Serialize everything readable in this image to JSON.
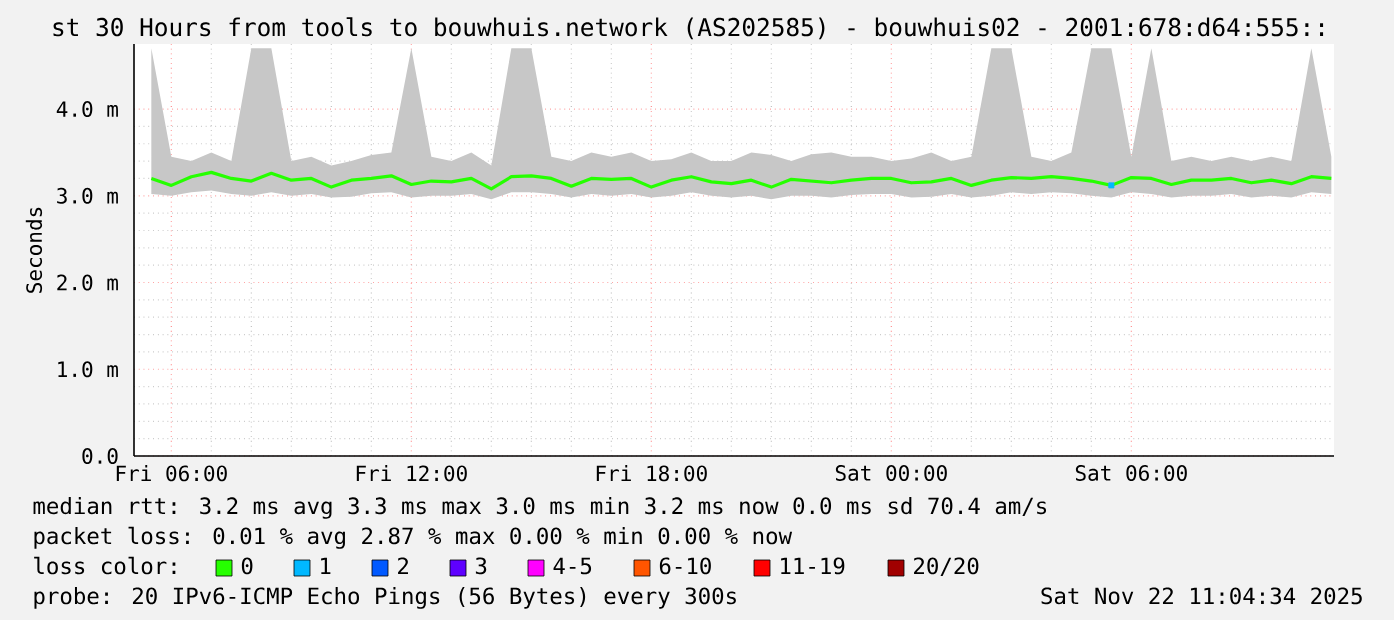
{
  "chart_data": {
    "type": "line",
    "title": "st 30 Hours from tools to bouwhuis.network (AS202585) - bouwhuis02 - 2001:678:d64:555::",
    "ylabel": "Seconds",
    "legend_title": "loss color:",
    "legend": "bottom",
    "grid": true,
    "xlim": [
      "2025-11-21T05:04",
      "2025-11-22T11:04"
    ],
    "xticks": [
      {
        "value": "2025-11-21T06:00",
        "label": "Fri 06:00"
      },
      {
        "value": "2025-11-21T12:00",
        "label": "Fri 12:00"
      },
      {
        "value": "2025-11-21T18:00",
        "label": "Fri 18:00"
      },
      {
        "value": "2025-11-22T00:00",
        "label": "Sat 00:00"
      },
      {
        "value": "2025-11-22T06:00",
        "label": "Sat 06:00"
      }
    ],
    "ylim": [
      0,
      4.75
    ],
    "yticks": [
      {
        "value": 0,
        "label": "0.0"
      },
      {
        "value": 1,
        "label": "1.0 m"
      },
      {
        "value": 2,
        "label": "2.0 m"
      },
      {
        "value": 3,
        "label": "3.0 m"
      },
      {
        "value": 4,
        "label": "4.0 m"
      }
    ],
    "x": [
      "2025-11-21T05:30",
      "2025-11-21T06:00",
      "2025-11-21T06:30",
      "2025-11-21T07:00",
      "2025-11-21T07:30",
      "2025-11-21T08:00",
      "2025-11-21T08:30",
      "2025-11-21T09:00",
      "2025-11-21T09:30",
      "2025-11-21T10:00",
      "2025-11-21T10:30",
      "2025-11-21T11:00",
      "2025-11-21T11:30",
      "2025-11-21T12:00",
      "2025-11-21T12:30",
      "2025-11-21T13:00",
      "2025-11-21T13:30",
      "2025-11-21T14:00",
      "2025-11-21T14:30",
      "2025-11-21T15:00",
      "2025-11-21T15:30",
      "2025-11-21T16:00",
      "2025-11-21T16:30",
      "2025-11-21T17:00",
      "2025-11-21T17:30",
      "2025-11-21T18:00",
      "2025-11-21T18:30",
      "2025-11-21T19:00",
      "2025-11-21T19:30",
      "2025-11-21T20:00",
      "2025-11-21T20:30",
      "2025-11-21T21:00",
      "2025-11-21T21:30",
      "2025-11-21T22:00",
      "2025-11-21T22:30",
      "2025-11-21T23:00",
      "2025-11-21T23:30",
      "2025-11-22T00:00",
      "2025-11-22T00:30",
      "2025-11-22T01:00",
      "2025-11-22T01:30",
      "2025-11-22T02:00",
      "2025-11-22T02:30",
      "2025-11-22T03:00",
      "2025-11-22T03:30",
      "2025-11-22T04:00",
      "2025-11-22T04:30",
      "2025-11-22T05:00",
      "2025-11-22T05:30",
      "2025-11-22T06:00",
      "2025-11-22T06:30",
      "2025-11-22T07:00",
      "2025-11-22T07:30",
      "2025-11-22T08:00",
      "2025-11-22T08:30",
      "2025-11-22T09:00",
      "2025-11-22T09:30",
      "2025-11-22T10:00",
      "2025-11-22T10:30",
      "2025-11-22T11:00"
    ],
    "series": [
      {
        "name": "0",
        "color": "#26ff00",
        "values": [
          3.2,
          3.12,
          3.22,
          3.27,
          3.2,
          3.17,
          3.26,
          3.18,
          3.2,
          3.1,
          3.18,
          3.2,
          3.23,
          3.13,
          3.17,
          3.16,
          3.2,
          3.08,
          3.22,
          3.23,
          3.2,
          3.11,
          3.2,
          3.19,
          3.2,
          3.1,
          3.18,
          3.22,
          3.16,
          3.14,
          3.18,
          3.1,
          3.19,
          3.17,
          3.15,
          3.18,
          3.2,
          3.2,
          3.15,
          3.16,
          3.2,
          3.12,
          3.18,
          3.21,
          3.2,
          3.22,
          3.2,
          3.17,
          3.12,
          3.21,
          3.2,
          3.13,
          3.18,
          3.18,
          3.2,
          3.15,
          3.18,
          3.14,
          3.22,
          3.2
        ],
        "lower": [
          3.02,
          3.0,
          3.04,
          3.06,
          3.02,
          3.0,
          3.04,
          3.0,
          3.02,
          2.98,
          2.99,
          3.03,
          3.04,
          2.98,
          3.0,
          3.0,
          3.02,
          2.96,
          3.04,
          3.04,
          3.02,
          2.98,
          3.02,
          3.0,
          3.02,
          2.98,
          3.0,
          3.04,
          3.0,
          2.98,
          3.0,
          2.96,
          3.0,
          3.0,
          2.98,
          3.01,
          3.02,
          3.02,
          2.98,
          2.99,
          3.02,
          2.98,
          3.0,
          3.04,
          3.02,
          3.04,
          3.03,
          3.0,
          2.98,
          3.04,
          3.02,
          2.98,
          3.0,
          3.0,
          3.02,
          2.98,
          3.0,
          2.98,
          3.04,
          3.02
        ],
        "upper": [
          4.7,
          3.45,
          3.4,
          3.5,
          3.4,
          4.7,
          4.7,
          3.4,
          3.45,
          3.35,
          3.4,
          3.47,
          3.5,
          4.7,
          3.45,
          3.4,
          3.5,
          3.35,
          4.7,
          4.7,
          3.45,
          3.4,
          3.5,
          3.45,
          3.5,
          3.4,
          3.42,
          3.5,
          3.4,
          3.4,
          3.5,
          3.47,
          3.4,
          3.48,
          3.5,
          3.45,
          3.45,
          3.4,
          3.43,
          3.5,
          3.4,
          3.45,
          4.7,
          4.7,
          3.45,
          3.4,
          3.5,
          4.7,
          4.7,
          3.45,
          4.7,
          3.4,
          3.45,
          3.4,
          3.45,
          3.4,
          3.45,
          3.4,
          4.7,
          3.45
        ]
      },
      {
        "name": "1",
        "color": "#00b8ff",
        "marker": "square",
        "values": [
          null,
          null,
          null,
          null,
          null,
          null,
          null,
          null,
          null,
          null,
          null,
          null,
          null,
          null,
          null,
          null,
          null,
          null,
          null,
          null,
          null,
          null,
          null,
          null,
          null,
          null,
          null,
          null,
          null,
          null,
          null,
          null,
          null,
          null,
          null,
          null,
          null,
          null,
          null,
          null,
          null,
          null,
          null,
          null,
          null,
          null,
          null,
          null,
          3.12,
          null,
          null,
          null,
          null,
          null,
          null,
          null,
          null,
          null,
          null,
          null
        ]
      },
      {
        "name": "2",
        "color": "#0059ff",
        "values": [
          null,
          null,
          null,
          null,
          null,
          null,
          null,
          null,
          null,
          null,
          null,
          null,
          null,
          null,
          null,
          null,
          null,
          null,
          null,
          null,
          null,
          null,
          null,
          null,
          null,
          null,
          null,
          null,
          null,
          null,
          null,
          null,
          null,
          null,
          null,
          null,
          null,
          null,
          null,
          null,
          null,
          null,
          null,
          null,
          null,
          null,
          null,
          null,
          null,
          null,
          null,
          null,
          null,
          null,
          null,
          null,
          null,
          null,
          null,
          null
        ]
      },
      {
        "name": "3",
        "color": "#5e00ff",
        "values": [
          null,
          null,
          null,
          null,
          null,
          null,
          null,
          null,
          null,
          null,
          null,
          null,
          null,
          null,
          null,
          null,
          null,
          null,
          null,
          null,
          null,
          null,
          null,
          null,
          null,
          null,
          null,
          null,
          null,
          null,
          null,
          null,
          null,
          null,
          null,
          null,
          null,
          null,
          null,
          null,
          null,
          null,
          null,
          null,
          null,
          null,
          null,
          null,
          null,
          null,
          null,
          null,
          null,
          null,
          null,
          null,
          null,
          null,
          null,
          null
        ]
      },
      {
        "name": "4-5",
        "color": "#ff00ff",
        "values": [
          null,
          null,
          null,
          null,
          null,
          null,
          null,
          null,
          null,
          null,
          null,
          null,
          null,
          null,
          null,
          null,
          null,
          null,
          null,
          null,
          null,
          null,
          null,
          null,
          null,
          null,
          null,
          null,
          null,
          null,
          null,
          null,
          null,
          null,
          null,
          null,
          null,
          null,
          null,
          null,
          null,
          null,
          null,
          null,
          null,
          null,
          null,
          null,
          null,
          null,
          null,
          null,
          null,
          null,
          null,
          null,
          null,
          null,
          null,
          null
        ]
      },
      {
        "name": "6-10",
        "color": "#ff5500",
        "values": [
          null,
          null,
          null,
          null,
          null,
          null,
          null,
          null,
          null,
          null,
          null,
          null,
          null,
          null,
          null,
          null,
          null,
          null,
          null,
          null,
          null,
          null,
          null,
          null,
          null,
          null,
          null,
          null,
          null,
          null,
          null,
          null,
          null,
          null,
          null,
          null,
          null,
          null,
          null,
          null,
          null,
          null,
          null,
          null,
          null,
          null,
          null,
          null,
          null,
          null,
          null,
          null,
          null,
          null,
          null,
          null,
          null,
          null,
          null,
          null
        ]
      },
      {
        "name": "11-19",
        "color": "#ff0000",
        "values": [
          null,
          null,
          null,
          null,
          null,
          null,
          null,
          null,
          null,
          null,
          null,
          null,
          null,
          null,
          null,
          null,
          null,
          null,
          null,
          null,
          null,
          null,
          null,
          null,
          null,
          null,
          null,
          null,
          null,
          null,
          null,
          null,
          null,
          null,
          null,
          null,
          null,
          null,
          null,
          null,
          null,
          null,
          null,
          null,
          null,
          null,
          null,
          null,
          null,
          null,
          null,
          null,
          null,
          null,
          null,
          null,
          null,
          null,
          null,
          null
        ]
      },
      {
        "name": "20/20",
        "color": "#a10000",
        "values": [
          null,
          null,
          null,
          null,
          null,
          null,
          null,
          null,
          null,
          null,
          null,
          null,
          null,
          null,
          null,
          null,
          null,
          null,
          null,
          null,
          null,
          null,
          null,
          null,
          null,
          null,
          null,
          null,
          null,
          null,
          null,
          null,
          null,
          null,
          null,
          null,
          null,
          null,
          null,
          null,
          null,
          null,
          null,
          null,
          null,
          null,
          null,
          null,
          null,
          null,
          null,
          null,
          null,
          null,
          null,
          null,
          null,
          null,
          null,
          null
        ]
      }
    ],
    "annotations": [
      "median rtt:  3.2 ms avg  3.3 ms max  3.0 ms min  3.2 ms now  0.0 ms sd  70.4   am/s",
      "packet loss: 0.01 % avg  2.87 % max  0.00 % min  0.00 % now",
      "probe:        20 IPv6-ICMP Echo Pings (56 Bytes) every 300s",
      "Sat Nov 22 11:04:34 2025"
    ]
  }
}
